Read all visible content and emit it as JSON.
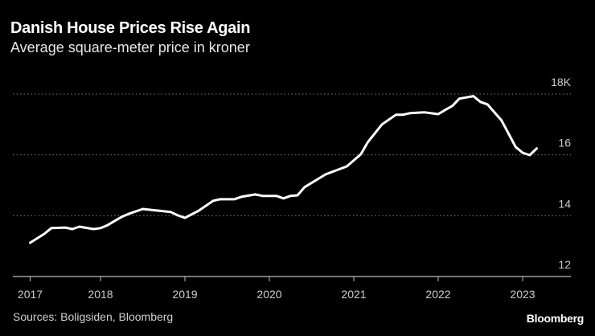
{
  "chart_data": {
    "type": "line",
    "title": "Danish House Prices Rise Again",
    "subtitle": "Average square-meter price in kroner",
    "source": "Sources: Boligsiden, Bloomberg",
    "logo": "Bloomberg",
    "ylim": [
      12,
      18
    ],
    "yticks": [
      {
        "value": 18,
        "label": "18K"
      },
      {
        "value": 16,
        "label": "16"
      },
      {
        "value": 14,
        "label": "14"
      },
      {
        "value": 12,
        "label": "12"
      }
    ],
    "xticks": [
      "2017",
      "2018",
      "2019",
      "2020",
      "2021",
      "2022",
      "2023"
    ],
    "grid": "horizontal dotted",
    "colors": {
      "background": "#000000",
      "line": "#ffffff",
      "grid": "#777777",
      "text": "#cccccc"
    },
    "series": [
      {
        "x": [
          "2017-03",
          "2017-05",
          "2017-06",
          "2017-08",
          "2017-09",
          "2017-10",
          "2017-12",
          "2018-01",
          "2018-02",
          "2018-04",
          "2018-05",
          "2018-07",
          "2018-11",
          "2018-12",
          "2019-01",
          "2019-03",
          "2019-05",
          "2019-06",
          "2019-08",
          "2019-09",
          "2019-11",
          "2019-12",
          "2020-02",
          "2020-03",
          "2020-04",
          "2020-05",
          "2020-06",
          "2020-09",
          "2020-12",
          "2021-02",
          "2021-03",
          "2021-05",
          "2021-07",
          "2021-08",
          "2021-09",
          "2021-11",
          "2022-01",
          "2022-02",
          "2022-03",
          "2022-04",
          "2022-06",
          "2022-07",
          "2022-08",
          "2022-10",
          "2022-12",
          "2023-01",
          "2023-02",
          "2023-03"
        ],
        "values": [
          13.11,
          13.4,
          13.59,
          13.61,
          13.56,
          13.64,
          13.56,
          13.59,
          13.69,
          13.96,
          14.06,
          14.22,
          14.12,
          14.01,
          13.93,
          14.17,
          14.49,
          14.54,
          14.54,
          14.62,
          14.7,
          14.65,
          14.65,
          14.57,
          14.65,
          14.67,
          14.94,
          15.36,
          15.62,
          16.02,
          16.42,
          17.0,
          17.32,
          17.32,
          17.37,
          17.4,
          17.34,
          17.48,
          17.61,
          17.85,
          17.93,
          17.74,
          17.66,
          17.13,
          16.26,
          16.07,
          15.99,
          16.21
        ]
      }
    ]
  }
}
